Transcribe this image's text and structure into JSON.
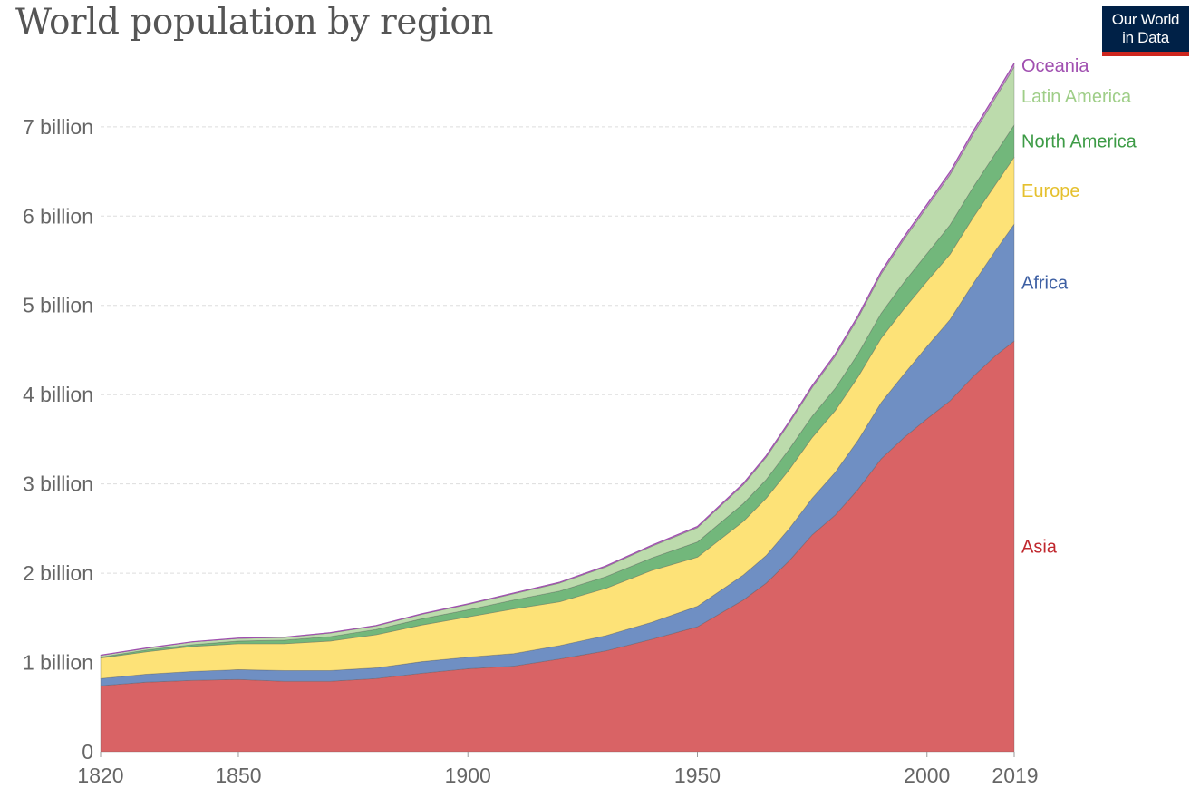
{
  "title": "World population by region",
  "logo": {
    "line1": "Our World",
    "line2": "in Data",
    "background": "#002147",
    "accent": "#ce261e"
  },
  "chart_data": {
    "type": "area",
    "stacked": true,
    "title": "World population by region",
    "xlabel": "",
    "ylabel": "",
    "x": [
      1820,
      1830,
      1840,
      1850,
      1860,
      1870,
      1880,
      1890,
      1900,
      1910,
      1920,
      1930,
      1940,
      1950,
      1960,
      1965,
      1970,
      1975,
      1980,
      1985,
      1990,
      1995,
      2000,
      2005,
      2010,
      2015,
      2019
    ],
    "xlim": [
      1820,
      2019
    ],
    "ylim": [
      0,
      7.75
    ],
    "x_ticks": [
      {
        "value": 1820,
        "label": "1820"
      },
      {
        "value": 1850,
        "label": "1850"
      },
      {
        "value": 1900,
        "label": "1900"
      },
      {
        "value": 1950,
        "label": "1950"
      },
      {
        "value": 2000,
        "label": "2000"
      },
      {
        "value": 2019,
        "label": "2019"
      }
    ],
    "y_ticks": [
      {
        "value": 0,
        "label": "0"
      },
      {
        "value": 1,
        "label": "1 billion"
      },
      {
        "value": 2,
        "label": "2 billion"
      },
      {
        "value": 3,
        "label": "3 billion"
      },
      {
        "value": 4,
        "label": "4 billion"
      },
      {
        "value": 5,
        "label": "5 billion"
      },
      {
        "value": 6,
        "label": "6 billion"
      },
      {
        "value": 7,
        "label": "7 billion"
      }
    ],
    "grid": "horizontal-dashed",
    "legend": "right-end-labels",
    "units": "billion",
    "series": [
      {
        "name": "Asia",
        "color": "#d96365",
        "label_color": "#c0282e",
        "values": [
          0.74,
          0.78,
          0.8,
          0.81,
          0.79,
          0.79,
          0.82,
          0.88,
          0.93,
          0.96,
          1.04,
          1.13,
          1.26,
          1.4,
          1.7,
          1.89,
          2.14,
          2.43,
          2.65,
          2.94,
          3.28,
          3.52,
          3.73,
          3.93,
          4.2,
          4.44,
          4.6
        ]
      },
      {
        "name": "Africa",
        "color": "#6f8fc3",
        "label_color": "#3d5fa3",
        "values": [
          0.08,
          0.09,
          0.1,
          0.11,
          0.12,
          0.12,
          0.12,
          0.13,
          0.13,
          0.14,
          0.15,
          0.17,
          0.19,
          0.23,
          0.28,
          0.31,
          0.36,
          0.41,
          0.48,
          0.55,
          0.63,
          0.71,
          0.81,
          0.91,
          1.04,
          1.18,
          1.31
        ]
      },
      {
        "name": "Europe",
        "color": "#fde277",
        "label_color": "#e5c02e",
        "values": [
          0.23,
          0.25,
          0.28,
          0.29,
          0.3,
          0.33,
          0.37,
          0.41,
          0.45,
          0.5,
          0.49,
          0.53,
          0.58,
          0.55,
          0.6,
          0.64,
          0.66,
          0.68,
          0.69,
          0.71,
          0.72,
          0.73,
          0.73,
          0.73,
          0.74,
          0.74,
          0.75
        ]
      },
      {
        "name": "North America",
        "color": "#72b77b",
        "label_color": "#3d9b46",
        "values": [
          0.01,
          0.02,
          0.02,
          0.03,
          0.04,
          0.05,
          0.06,
          0.07,
          0.08,
          0.1,
          0.12,
          0.13,
          0.14,
          0.17,
          0.2,
          0.21,
          0.23,
          0.24,
          0.25,
          0.26,
          0.28,
          0.3,
          0.31,
          0.33,
          0.34,
          0.35,
          0.36
        ]
      },
      {
        "name": "Latin America",
        "color": "#bcdbac",
        "label_color": "#9fce88",
        "values": [
          0.02,
          0.02,
          0.03,
          0.03,
          0.03,
          0.04,
          0.04,
          0.05,
          0.06,
          0.07,
          0.09,
          0.11,
          0.13,
          0.16,
          0.21,
          0.25,
          0.29,
          0.32,
          0.36,
          0.4,
          0.44,
          0.48,
          0.52,
          0.56,
          0.59,
          0.62,
          0.65
        ]
      },
      {
        "name": "Oceania",
        "color": "#c48fcc",
        "label_color": "#a04fb0",
        "values": [
          0.002,
          0.002,
          0.002,
          0.002,
          0.003,
          0.004,
          0.004,
          0.005,
          0.006,
          0.008,
          0.009,
          0.01,
          0.011,
          0.013,
          0.016,
          0.018,
          0.019,
          0.021,
          0.023,
          0.025,
          0.027,
          0.029,
          0.031,
          0.034,
          0.037,
          0.039,
          0.042
        ]
      }
    ]
  }
}
